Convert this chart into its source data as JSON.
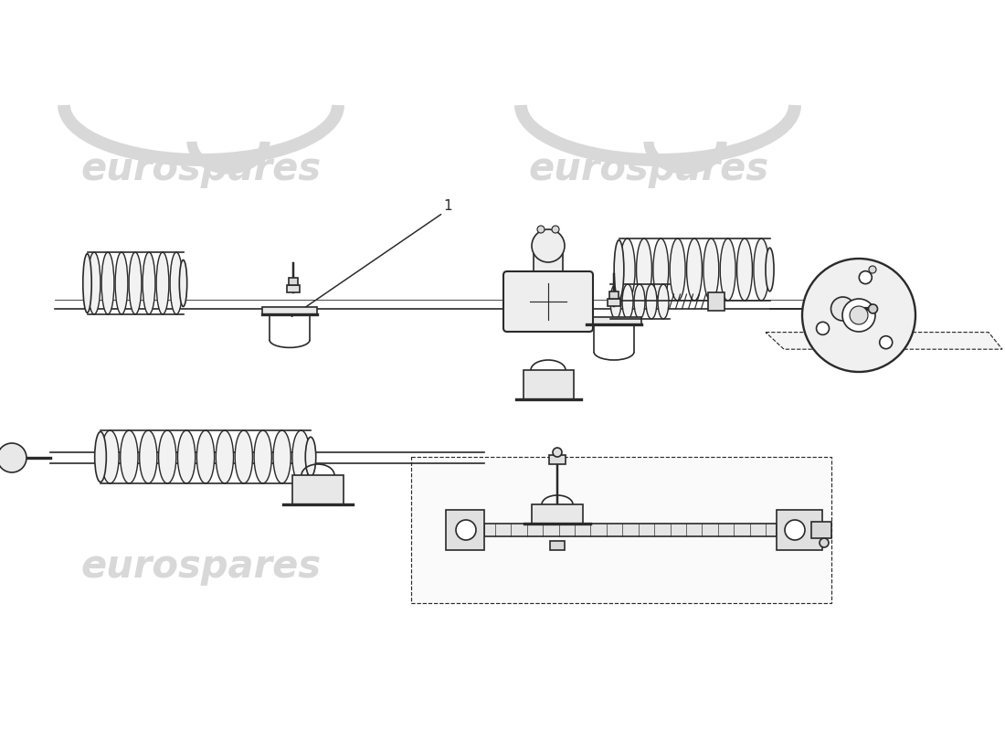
{
  "background_color": "#ffffff",
  "line_color": "#2a2a2a",
  "watermark_color": "#d8d8d8",
  "watermark_text": "eurospares",
  "line_width": 1.2,
  "fig_width": 11.0,
  "fig_height": 8.0,
  "dpi": 100
}
